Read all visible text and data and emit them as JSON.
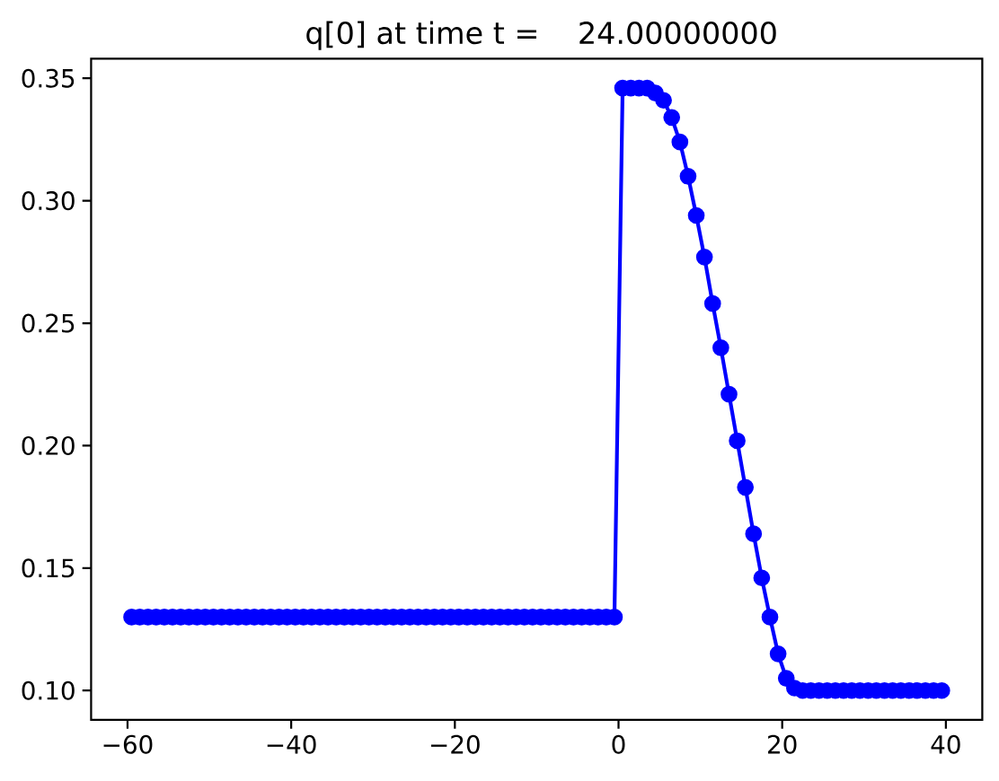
{
  "chart_data": {
    "type": "line",
    "title": "q[0] at time t =    24.00000000",
    "x": [
      -59.5,
      -58.5,
      -57.5,
      -56.5,
      -55.5,
      -54.5,
      -53.5,
      -52.5,
      -51.5,
      -50.5,
      -49.5,
      -48.5,
      -47.5,
      -46.5,
      -45.5,
      -44.5,
      -43.5,
      -42.5,
      -41.5,
      -40.5,
      -39.5,
      -38.5,
      -37.5,
      -36.5,
      -35.5,
      -34.5,
      -33.5,
      -32.5,
      -31.5,
      -30.5,
      -29.5,
      -28.5,
      -27.5,
      -26.5,
      -25.5,
      -24.5,
      -23.5,
      -22.5,
      -21.5,
      -20.5,
      -19.5,
      -18.5,
      -17.5,
      -16.5,
      -15.5,
      -14.5,
      -13.5,
      -12.5,
      -11.5,
      -10.5,
      -9.5,
      -8.5,
      -7.5,
      -6.5,
      -5.5,
      -4.5,
      -3.5,
      -2.5,
      -1.5,
      -0.5,
      0.5,
      1.5,
      2.5,
      3.5,
      4.5,
      5.5,
      6.5,
      7.5,
      8.5,
      9.5,
      10.5,
      11.5,
      12.5,
      13.5,
      14.5,
      15.5,
      16.5,
      17.5,
      18.5,
      19.5,
      20.5,
      21.5,
      22.5,
      23.5,
      24.5,
      25.5,
      26.5,
      27.5,
      28.5,
      29.5,
      30.5,
      31.5,
      32.5,
      33.5,
      34.5,
      35.5,
      36.5,
      37.5,
      38.5,
      39.5
    ],
    "values": [
      0.13,
      0.13,
      0.13,
      0.13,
      0.13,
      0.13,
      0.13,
      0.13,
      0.13,
      0.13,
      0.13,
      0.13,
      0.13,
      0.13,
      0.13,
      0.13,
      0.13,
      0.13,
      0.13,
      0.13,
      0.13,
      0.13,
      0.13,
      0.13,
      0.13,
      0.13,
      0.13,
      0.13,
      0.13,
      0.13,
      0.13,
      0.13,
      0.13,
      0.13,
      0.13,
      0.13,
      0.13,
      0.13,
      0.13,
      0.13,
      0.13,
      0.13,
      0.13,
      0.13,
      0.13,
      0.13,
      0.13,
      0.13,
      0.13,
      0.13,
      0.13,
      0.13,
      0.13,
      0.13,
      0.13,
      0.13,
      0.13,
      0.13,
      0.13,
      0.13,
      0.346,
      0.346,
      0.346,
      0.346,
      0.344,
      0.341,
      0.334,
      0.324,
      0.31,
      0.294,
      0.277,
      0.258,
      0.24,
      0.221,
      0.202,
      0.183,
      0.164,
      0.146,
      0.13,
      0.115,
      0.105,
      0.101,
      0.1,
      0.1,
      0.1,
      0.1,
      0.1,
      0.1,
      0.1,
      0.1,
      0.1,
      0.1,
      0.1,
      0.1,
      0.1,
      0.1,
      0.1,
      0.1,
      0.1,
      0.1
    ],
    "color": "#0000ff",
    "marker": "circle",
    "line_style": "solid",
    "xlim": [
      -64.45,
      44.45
    ],
    "ylim": [
      0.088,
      0.358
    ],
    "xticks": [
      {
        "value": -60,
        "label": "−60"
      },
      {
        "value": -40,
        "label": "−40"
      },
      {
        "value": -20,
        "label": "−20"
      },
      0,
      20,
      40
    ],
    "yticks": [
      {
        "value": 0.1,
        "label": "0.10"
      },
      {
        "value": 0.15,
        "label": "0.15"
      },
      {
        "value": 0.2,
        "label": "0.20"
      },
      {
        "value": 0.25,
        "label": "0.25"
      },
      {
        "value": 0.3,
        "label": "0.30"
      },
      {
        "value": 0.35,
        "label": "0.35"
      }
    ]
  }
}
